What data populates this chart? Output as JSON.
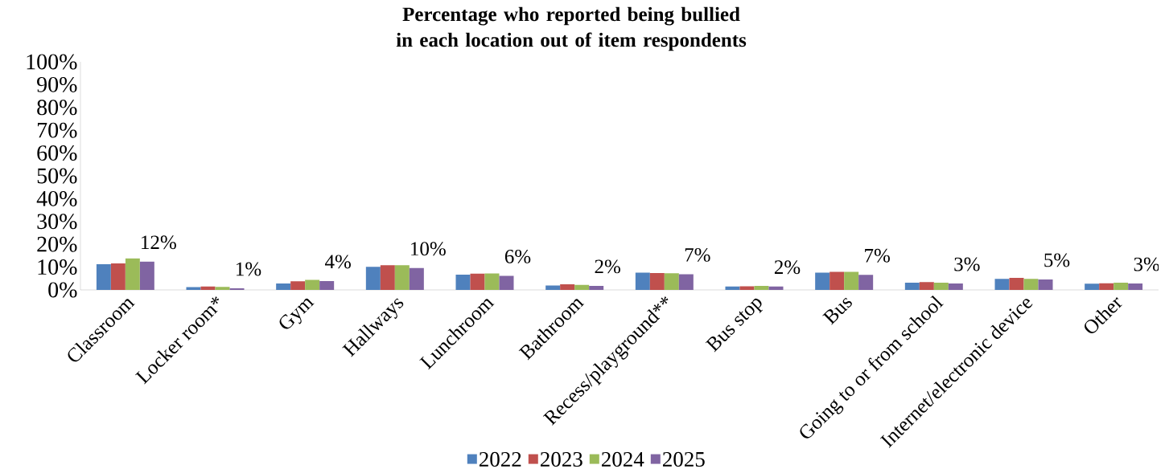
{
  "chart_data": {
    "type": "bar",
    "title": "Percentage who reported being bullied in each location out of item respondents",
    "categories": [
      "Classroom",
      "Locker room*",
      "Gym",
      "Hallways",
      "Lunchroom",
      "Bathroom",
      "Recess/playground**",
      "Bus stop",
      "Bus",
      "Going to or from school",
      "Internet/electronic device",
      "Other"
    ],
    "series": [
      {
        "name": "2022",
        "color": "#4f81bd",
        "values": [
          11.3,
          1.2,
          2.8,
          10.1,
          6.7,
          1.9,
          7.6,
          1.5,
          7.6,
          3.2,
          4.8,
          2.7
        ]
      },
      {
        "name": "2023",
        "color": "#c0504d",
        "values": [
          11.6,
          1.5,
          3.8,
          10.8,
          7.1,
          2.5,
          7.4,
          1.6,
          7.9,
          3.4,
          5.3,
          2.9
        ]
      },
      {
        "name": "2024",
        "color": "#9bbb59",
        "values": [
          13.8,
          1.3,
          4.4,
          10.8,
          7.2,
          2.2,
          7.3,
          1.8,
          7.9,
          3.2,
          4.8,
          3.2
        ]
      },
      {
        "name": "2025",
        "color": "#8064a2",
        "values": [
          12.4,
          0.7,
          3.9,
          9.6,
          6.2,
          1.8,
          6.9,
          1.5,
          6.6,
          2.8,
          4.6,
          2.8
        ],
        "value_labels": [
          "12%",
          "1%",
          "4%",
          "10%",
          "6%",
          "2%",
          "7%",
          "2%",
          "7%",
          "3%",
          "5%",
          "3%"
        ]
      }
    ],
    "ylim": [
      0,
      100
    ],
    "yticks": [
      {
        "value": 0,
        "label": "0%"
      },
      {
        "value": 10,
        "label": "10%"
      },
      {
        "value": 20,
        "label": "20%"
      },
      {
        "value": 30,
        "label": "30%"
      },
      {
        "value": 40,
        "label": "40%"
      },
      {
        "value": 50,
        "label": "50%"
      },
      {
        "value": 60,
        "label": "60%"
      },
      {
        "value": 70,
        "label": "70%"
      },
      {
        "value": 80,
        "label": "80%"
      },
      {
        "value": 90,
        "label": "90%"
      },
      {
        "value": 100,
        "label": "100%"
      }
    ],
    "legend": "bottom"
  }
}
